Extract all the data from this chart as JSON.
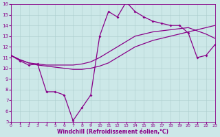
{
  "xlabel": "Windchill (Refroidissement éolien,°C)",
  "bg_color": "#cce8e8",
  "grid_color": "#aacccc",
  "line_color": "#880088",
  "xlim": [
    0,
    23
  ],
  "ylim": [
    5,
    16
  ],
  "xticks": [
    0,
    1,
    2,
    3,
    4,
    5,
    6,
    7,
    8,
    9,
    10,
    11,
    12,
    13,
    14,
    15,
    16,
    17,
    18,
    19,
    20,
    21,
    22,
    23
  ],
  "yticks": [
    5,
    6,
    7,
    8,
    9,
    10,
    11,
    12,
    13,
    14,
    15,
    16
  ],
  "line1_y": [
    11.2,
    10.7,
    10.3,
    10.4,
    7.8,
    7.8,
    7.5,
    5.1,
    6.3,
    7.5,
    13.0,
    15.3,
    14.8,
    16.2,
    15.3,
    14.8,
    14.4,
    14.2,
    14.0,
    14.0,
    13.3,
    11.0,
    11.2,
    12.2
  ],
  "line2_y": [
    11.2,
    10.8,
    10.5,
    10.3,
    10.2,
    10.1,
    10.0,
    9.9,
    9.9,
    10.0,
    10.2,
    10.5,
    11.0,
    11.5,
    12.0,
    12.3,
    12.6,
    12.8,
    13.0,
    13.2,
    13.4,
    13.6,
    13.8,
    14.0
  ],
  "line3_y": [
    11.2,
    10.8,
    10.5,
    10.4,
    10.3,
    10.3,
    10.3,
    10.3,
    10.4,
    10.6,
    11.0,
    11.5,
    12.0,
    12.5,
    13.0,
    13.2,
    13.4,
    13.5,
    13.6,
    13.7,
    13.8,
    13.5,
    13.2,
    12.8
  ]
}
